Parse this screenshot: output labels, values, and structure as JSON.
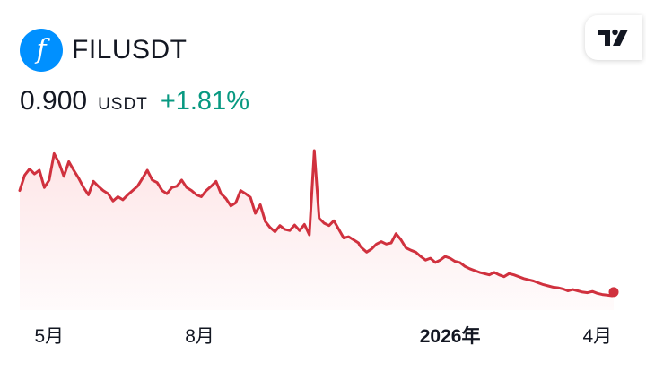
{
  "symbol": {
    "logo_glyph": "f",
    "logo_color": "#0090ff",
    "name": "FILUSDT"
  },
  "quote": {
    "price": "0.900",
    "currency": "USDT",
    "change": "+1.81%",
    "change_color": "#089981"
  },
  "tradingview_logo_icon": "tradingview-logo-icon",
  "chart_data": {
    "type": "area",
    "line_color": "#d0313e",
    "fill_color": "#f23645",
    "x_ticks": [
      {
        "label": "5月",
        "date": "2025-05-01",
        "bold": false
      },
      {
        "label": "8月",
        "date": "2025-08-01",
        "bold": false
      },
      {
        "label": "2026年",
        "date": "2026-01-01",
        "bold": true
      },
      {
        "label": "4月",
        "date": "2026-04-01",
        "bold": false
      }
    ],
    "x": [
      "2025-04-13",
      "2025-04-16",
      "2025-04-19",
      "2025-04-22",
      "2025-04-25",
      "2025-04-28",
      "2025-05-01",
      "2025-05-04",
      "2025-05-07",
      "2025-05-10",
      "2025-05-13",
      "2025-05-16",
      "2025-05-19",
      "2025-05-22",
      "2025-05-25",
      "2025-05-28",
      "2025-05-31",
      "2025-06-03",
      "2025-06-06",
      "2025-06-09",
      "2025-06-12",
      "2025-06-15",
      "2025-06-18",
      "2025-06-21",
      "2025-06-24",
      "2025-06-27",
      "2025-06-30",
      "2025-07-03",
      "2025-07-06",
      "2025-07-09",
      "2025-07-12",
      "2025-07-15",
      "2025-07-18",
      "2025-07-21",
      "2025-07-24",
      "2025-07-27",
      "2025-07-30",
      "2025-08-02",
      "2025-08-05",
      "2025-08-08",
      "2025-08-11",
      "2025-08-14",
      "2025-08-17",
      "2025-08-20",
      "2025-08-23",
      "2025-08-26",
      "2025-08-29",
      "2025-09-01",
      "2025-09-04",
      "2025-09-07",
      "2025-09-10",
      "2025-09-13",
      "2025-09-16",
      "2025-09-19",
      "2025-09-22",
      "2025-09-25",
      "2025-09-28",
      "2025-10-01",
      "2025-10-04",
      "2025-10-07",
      "2025-10-10",
      "2025-10-13",
      "2025-10-16",
      "2025-10-19",
      "2025-10-22",
      "2025-10-25",
      "2025-10-28",
      "2025-10-31",
      "2025-11-03",
      "2025-11-06",
      "2025-11-07",
      "2025-11-08",
      "2025-11-11",
      "2025-11-14",
      "2025-11-17",
      "2025-11-20",
      "2025-11-23",
      "2025-11-26",
      "2025-11-29",
      "2025-12-02",
      "2025-12-05",
      "2025-12-08",
      "2025-12-11",
      "2025-12-14",
      "2025-12-17",
      "2025-12-20",
      "2025-12-23",
      "2025-12-26",
      "2025-12-29",
      "2026-01-01",
      "2026-01-04",
      "2026-01-07",
      "2026-01-10",
      "2026-01-13",
      "2026-01-16",
      "2026-01-19",
      "2026-01-22",
      "2026-01-25",
      "2026-01-28",
      "2026-01-31",
      "2026-02-03",
      "2026-02-06",
      "2026-02-09",
      "2026-02-12",
      "2026-02-15",
      "2026-02-18",
      "2026-02-21",
      "2026-02-24",
      "2026-02-27",
      "2026-03-02",
      "2026-03-05",
      "2026-03-08",
      "2026-03-11",
      "2026-03-14",
      "2026-03-17",
      "2026-03-20",
      "2026-03-23",
      "2026-03-26",
      "2026-03-29",
      "2026-04-01",
      "2026-04-04",
      "2026-04-07",
      "2026-04-10",
      "2026-04-11"
    ],
    "values": [
      2.55,
      2.8,
      2.9,
      2.82,
      2.88,
      2.6,
      2.72,
      3.15,
      3.0,
      2.78,
      3.02,
      2.88,
      2.75,
      2.6,
      2.48,
      2.7,
      2.62,
      2.55,
      2.5,
      2.38,
      2.45,
      2.4,
      2.48,
      2.55,
      2.62,
      2.75,
      2.88,
      2.72,
      2.68,
      2.55,
      2.5,
      2.6,
      2.62,
      2.72,
      2.6,
      2.55,
      2.48,
      2.45,
      2.55,
      2.62,
      2.7,
      2.5,
      2.42,
      2.3,
      2.35,
      2.55,
      2.5,
      2.44,
      2.18,
      2.32,
      2.05,
      1.95,
      1.88,
      1.98,
      1.92,
      1.9,
      1.99,
      1.9,
      2.0,
      1.83,
      3.2,
      2.1,
      2.02,
      1.98,
      2.06,
      1.92,
      1.78,
      1.8,
      1.75,
      1.7,
      1.65,
      1.62,
      1.55,
      1.6,
      1.68,
      1.72,
      1.68,
      1.7,
      1.85,
      1.75,
      1.62,
      1.58,
      1.55,
      1.48,
      1.42,
      1.45,
      1.38,
      1.42,
      1.48,
      1.45,
      1.4,
      1.38,
      1.32,
      1.28,
      1.25,
      1.22,
      1.2,
      1.18,
      1.22,
      1.18,
      1.15,
      1.2,
      1.18,
      1.15,
      1.12,
      1.1,
      1.08,
      1.05,
      1.02,
      1.0,
      0.98,
      0.97,
      0.95,
      0.92,
      0.94,
      0.92,
      0.9,
      0.89,
      0.91,
      0.88,
      0.86,
      0.85,
      0.84,
      0.9
    ],
    "last_point_marker": true
  }
}
